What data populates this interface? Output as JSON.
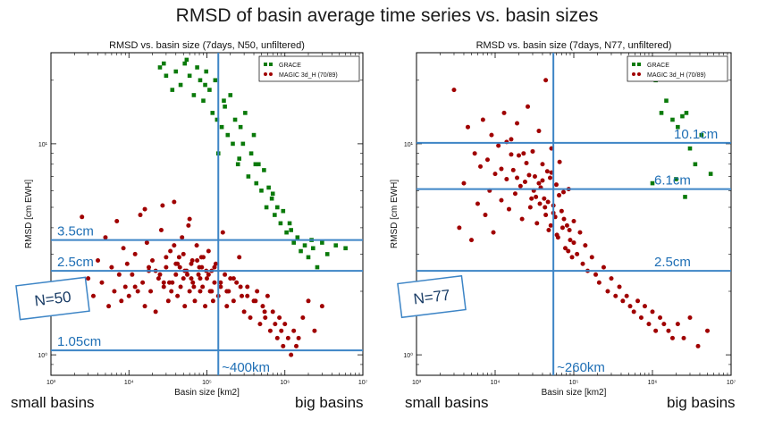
{
  "page": {
    "title": "RMSD of basin average time series vs. basin sizes"
  },
  "captions": {
    "left_small": "small basins",
    "left_big": "big basins",
    "right_small": "small basins",
    "right_big": "big basins"
  },
  "colors": {
    "grace": "#0a7a0a",
    "magic": "#a00000",
    "overlay": "#3d85c6",
    "overlay_text": "#1f6fb5"
  },
  "chart_data": [
    {
      "type": "scatter",
      "title": "RMSD vs. basin size (7days, N50, unfiltered)",
      "xlabel": "Basin size [km2]",
      "ylabel": "RMSD [cm EWH]",
      "x_scale": "log",
      "y_scale": "log",
      "xlim": [
        1000,
        10000000
      ],
      "ylim": [
        0.8,
        27
      ],
      "x_ticks": [
        {
          "v": 1000,
          "label": "10³"
        },
        {
          "v": 10000,
          "label": "10⁴"
        },
        {
          "v": 100000,
          "label": "10⁵"
        },
        {
          "v": 1000000,
          "label": "10⁶"
        },
        {
          "v": 10000000,
          "label": "10⁷"
        }
      ],
      "y_ticks": [
        {
          "v": 1,
          "label": "10⁰"
        },
        {
          "v": 10,
          "label": "10¹"
        }
      ],
      "legend": {
        "position": "top-right",
        "entries": [
          {
            "name": "GRACE",
            "marker": "square"
          },
          {
            "name": "MAGIC 3d_H (70/89)",
            "marker": "circle"
          }
        ]
      },
      "hlines": [
        {
          "y": 3.5,
          "label": "3.5cm"
        },
        {
          "y": 2.5,
          "label": "2.5cm"
        },
        {
          "y": 1.05,
          "label": "1.05cm"
        }
      ],
      "vlines": [
        {
          "x": 140000,
          "label": "~400km"
        }
      ],
      "box_label": "N=50",
      "series": [
        {
          "name": "GRACE",
          "marker": "square",
          "x": [
            25000,
            30000,
            36000,
            40000,
            46000,
            52000,
            60000,
            68000,
            75000,
            82000,
            90000,
            98000,
            108000,
            118000,
            128000,
            140000,
            155000,
            170000,
            185000,
            200000,
            215000,
            230000,
            250000,
            270000,
            290000,
            310000,
            340000,
            370000,
            400000,
            430000,
            460000,
            500000,
            540000,
            580000,
            620000,
            680000,
            740000,
            800000,
            880000,
            950000,
            1050000,
            1150000,
            1300000,
            1450000,
            1600000,
            1800000,
            2000000,
            2300000,
            2600000,
            3000000,
            3500000,
            4500000,
            6000000,
            28000,
            55000,
            95000,
            135000,
            165000,
            260000,
            420000,
            700000,
            1200000,
            2200000
          ],
          "y": [
            23,
            21,
            18,
            22,
            19,
            24,
            21,
            17,
            23,
            20,
            16,
            22,
            18,
            14,
            20,
            9,
            12,
            15,
            11,
            17,
            10,
            13,
            8,
            12,
            10,
            14,
            7,
            9,
            11,
            6.5,
            8,
            6,
            7.5,
            5,
            6.2,
            5.5,
            4.6,
            5,
            4.2,
            4.8,
            3.8,
            4.2,
            3.4,
            3.6,
            3.1,
            3.3,
            2.9,
            3.2,
            2.6,
            3.4,
            3.0,
            3.3,
            3.2,
            24,
            25,
            19,
            13,
            16,
            8.5,
            8,
            5.8,
            3.9,
            3.5
          ]
        },
        {
          "name": "MAGIC 3d_H (70/89)",
          "marker": "circle",
          "x": [
            2000,
            2500,
            3000,
            3500,
            4000,
            4500,
            5000,
            5500,
            6000,
            6500,
            7000,
            7500,
            8000,
            8500,
            9000,
            9500,
            10000,
            11000,
            12000,
            13000,
            14000,
            15000,
            16000,
            17000,
            18000,
            19000,
            20000,
            22000,
            24000,
            26000,
            28000,
            30000,
            32000,
            34000,
            36000,
            38000,
            40000,
            42000,
            44000,
            46000,
            48000,
            50000,
            52000,
            55000,
            58000,
            60000,
            63000,
            66000,
            70000,
            74000,
            78000,
            82000,
            86000,
            90000,
            95000,
            100000,
            105000,
            110000,
            115000,
            120000,
            125000,
            130000,
            140000,
            150000,
            160000,
            170000,
            180000,
            190000,
            200000,
            220000,
            240000,
            260000,
            280000,
            300000,
            330000,
            360000,
            400000,
            440000,
            480000,
            520000,
            560000,
            600000,
            650000,
            700000,
            750000,
            800000,
            850000,
            900000,
            950000,
            1000000,
            1100000,
            1200000,
            1300000,
            1400000,
            1500000,
            1700000,
            2000000,
            2400000,
            3000000,
            12000,
            18000,
            25000,
            33000,
            42000,
            52000,
            63000,
            75000,
            88000,
            105000,
            125000,
            150000,
            180000,
            220000,
            270000,
            330000,
            420000,
            550000,
            22000,
            28000,
            35000,
            45000,
            56000,
            68000,
            82000,
            98000,
            115000,
            30000,
            40000,
            50000,
            65000,
            80000,
            16000,
            27000,
            38000,
            60000,
            85000
          ],
          "y": [
            2.1,
            4.5,
            2.3,
            1.9,
            2.8,
            2.2,
            3.6,
            1.7,
            2.6,
            2.0,
            4.3,
            2.4,
            1.8,
            3.2,
            2.1,
            2.7,
            1.9,
            2.4,
            3.0,
            2.0,
            4.6,
            2.2,
            1.7,
            3.4,
            2.5,
            2.0,
            2.8,
            1.6,
            2.3,
            3.9,
            2.1,
            2.6,
            1.8,
            3.1,
            2.2,
            5.3,
            2.4,
            1.9,
            2.9,
            2.1,
            3.6,
            2.3,
            1.7,
            2.5,
            4.1,
            2.0,
            2.7,
            2.2,
            1.8,
            3.3,
            2.4,
            2.0,
            2.6,
            2.9,
            1.7,
            2.3,
            3.1,
            2.0,
            2.5,
            1.8,
            2.2,
            2.7,
            1.9,
            2.1,
            3.8,
            2.4,
            1.7,
            2.0,
            2.3,
            1.8,
            2.2,
            2.9,
            1.9,
            1.6,
            2.1,
            1.5,
            1.8,
            2.0,
            1.4,
            1.7,
            1.5,
            1.9,
            1.3,
            1.6,
            1.4,
            1.2,
            1.5,
            1.3,
            1.1,
            1.4,
            1.2,
            1.0,
            1.3,
            1.1,
            1.2,
            1.5,
            1.8,
            1.3,
            1.7,
            2.1,
            2.6,
            2.4,
            2.2,
            2.7,
            2.5,
            2.3,
            2.8,
            2.1,
            2.4,
            2.6,
            2.2,
            2.0,
            2.3,
            2.1,
            1.9,
            1.8,
            1.6,
            2.5,
            2.2,
            2.0,
            2.6,
            2.4,
            2.1,
            2.3,
            2.5,
            2.0,
            2.9,
            2.7,
            3.0,
            2.8,
            2.6,
            4.9,
            5.1,
            3.3,
            4.4,
            2.9
          ]
        }
      ]
    },
    {
      "type": "scatter",
      "title": "RMSD vs. basin size (7days, N77, unfiltered)",
      "xlabel": "Basin size [km2]",
      "ylabel": "RMSD [cm EWH]",
      "x_scale": "log",
      "y_scale": "log",
      "xlim": [
        1000,
        10000000
      ],
      "ylim": [
        0.8,
        27
      ],
      "x_ticks": [
        {
          "v": 1000,
          "label": "10³"
        },
        {
          "v": 10000,
          "label": "10⁴"
        },
        {
          "v": 100000,
          "label": "10⁵"
        },
        {
          "v": 1000000,
          "label": "10⁶"
        },
        {
          "v": 10000000,
          "label": "10⁷"
        }
      ],
      "y_ticks": [
        {
          "v": 1,
          "label": "10⁰"
        },
        {
          "v": 10,
          "label": "10¹"
        }
      ],
      "legend": {
        "position": "top-right",
        "entries": [
          {
            "name": "GRACE",
            "marker": "square"
          },
          {
            "name": "MAGIC 3d_H (70/89)",
            "marker": "circle"
          }
        ]
      },
      "hlines": [
        {
          "y": 10.1,
          "label": "10.1cm"
        },
        {
          "y": 6.1,
          "label": "6.1cm"
        },
        {
          "y": 2.5,
          "label": "2.5cm"
        }
      ],
      "vlines": [
        {
          "x": 55000,
          "label": "~260km"
        }
      ],
      "box_label": "N=77",
      "series": [
        {
          "name": "GRACE",
          "marker": "square",
          "x": [
            1100000,
            1300000,
            1500000,
            1800000,
            2100000,
            2400000,
            2700000,
            3000000,
            3500000,
            4200000,
            5500000,
            1000000,
            2000000,
            2600000
          ],
          "y": [
            20,
            14,
            16,
            13,
            12,
            13.5,
            14,
            9.5,
            8,
            11,
            7.2,
            6.5,
            6.8,
            5.6
          ]
        },
        {
          "name": "MAGIC 3d_H (70/89)",
          "marker": "circle",
          "x": [
            3000,
            3500,
            4000,
            4500,
            5000,
            5500,
            6000,
            6500,
            7000,
            7500,
            8000,
            8500,
            9000,
            9500,
            10000,
            11000,
            12000,
            13000,
            14000,
            15000,
            16000,
            17000,
            18000,
            19000,
            20000,
            22000,
            24000,
            26000,
            28000,
            30000,
            32000,
            34000,
            36000,
            38000,
            40000,
            42000,
            44000,
            46000,
            48000,
            50000,
            52000,
            55000,
            58000,
            60000,
            63000,
            66000,
            70000,
            74000,
            78000,
            82000,
            86000,
            90000,
            95000,
            100000,
            110000,
            120000,
            130000,
            140000,
            150000,
            170000,
            190000,
            210000,
            240000,
            270000,
            300000,
            340000,
            380000,
            420000,
            470000,
            520000,
            580000,
            650000,
            720000,
            800000,
            900000,
            1000000,
            1100000,
            1250000,
            1400000,
            1600000,
            1800000,
            2100000,
            2500000,
            3000000,
            3800000,
            5000000,
            12000,
            16000,
            21000,
            27000,
            33000,
            40000,
            47000,
            55000,
            65000,
            75000,
            88000,
            100000,
            14000,
            19000,
            25000,
            31000,
            37000,
            44000,
            52000,
            61000,
            72000,
            85000,
            23000,
            29000,
            36000,
            43000,
            51000
          ],
          "y": [
            18,
            4.0,
            6.5,
            12,
            3.5,
            9.0,
            5.2,
            7.8,
            13,
            4.6,
            8.4,
            6.0,
            11,
            3.8,
            7.2,
            9.8,
            5.4,
            14,
            6.8,
            4.9,
            10.5,
            7.5,
            5.8,
            12.5,
            8.8,
            4.4,
            6.6,
            15,
            5.0,
            9.2,
            7.0,
            4.2,
            11.5,
            6.2,
            8.0,
            5.5,
            20,
            7.4,
            3.9,
            6.9,
            9.5,
            5.1,
            4.5,
            6.4,
            3.6,
            8.2,
            4.8,
            5.9,
            3.2,
            4.1,
            6.1,
            3.5,
            2.9,
            4.3,
            3.0,
            3.8,
            2.7,
            3.3,
            2.5,
            2.9,
            2.4,
            2.2,
            2.6,
            2.0,
            2.3,
            1.9,
            2.1,
            1.8,
            1.9,
            1.7,
            1.6,
            1.8,
            1.5,
            1.7,
            1.4,
            1.6,
            1.3,
            1.5,
            1.4,
            1.3,
            1.2,
            1.4,
            1.2,
            1.5,
            1.1,
            1.3,
            7.6,
            8.9,
            6.3,
            7.1,
            5.6,
            6.7,
            5.3,
            4.7,
            5.7,
            4.4,
            3.9,
            3.4,
            10.2,
            6.9,
            8.1,
            6.0,
            5.2,
            4.6,
            7.3,
            3.7,
            4.0,
            3.1,
            9.0,
            5.5,
            6.5,
            5.0,
            4.1
          ]
        }
      ]
    }
  ]
}
